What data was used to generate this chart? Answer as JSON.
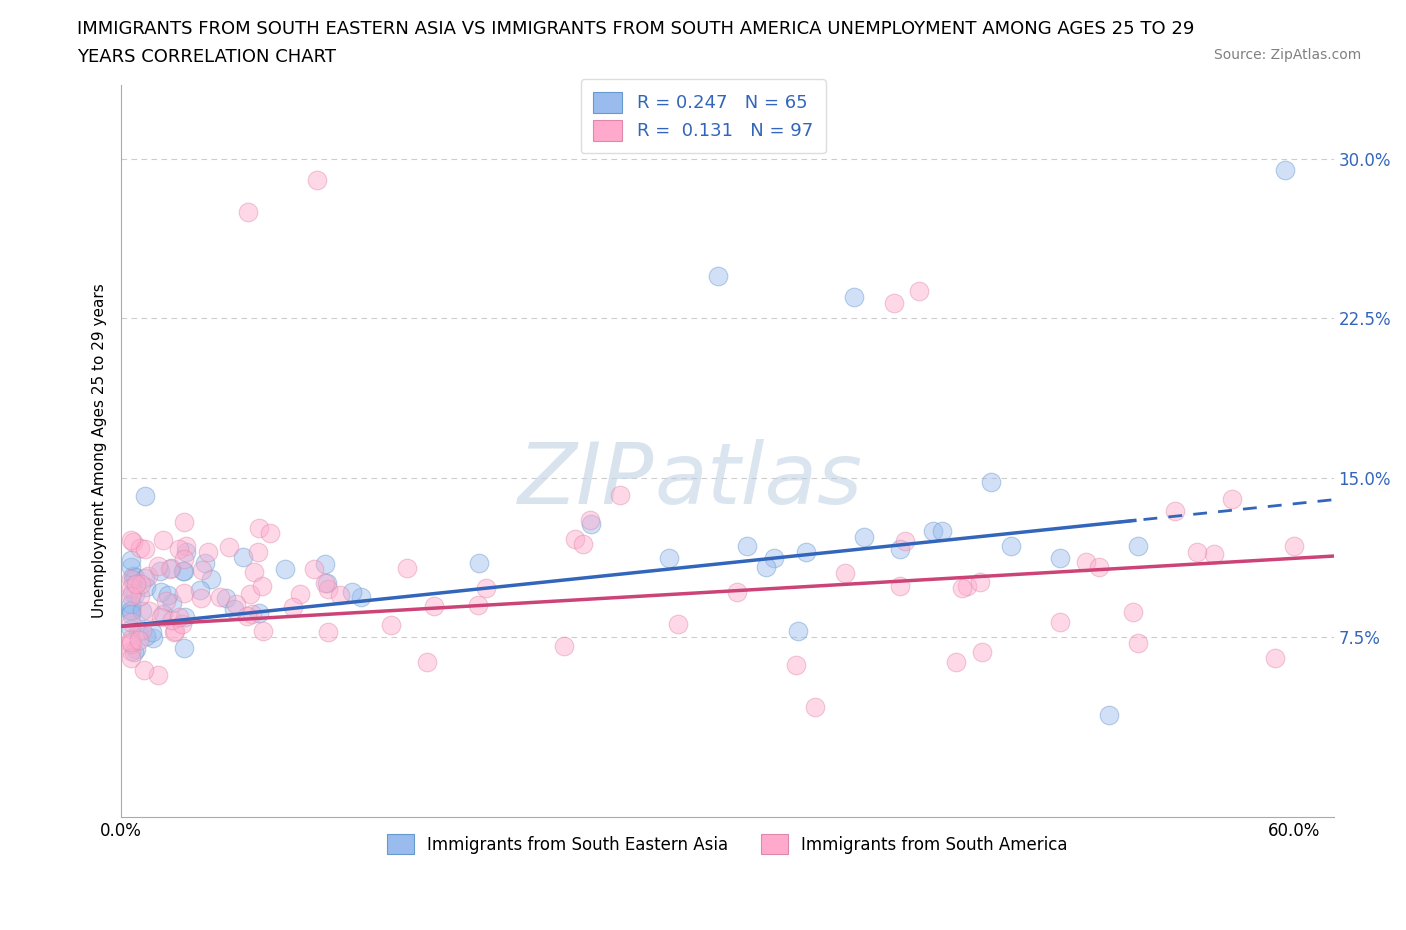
{
  "title_line1": "IMMIGRANTS FROM SOUTH EASTERN ASIA VS IMMIGRANTS FROM SOUTH AMERICA UNEMPLOYMENT AMONG AGES 25 TO 29",
  "title_line2": "YEARS CORRELATION CHART",
  "source_text": "Source: ZipAtlas.com",
  "ylabel": "Unemployment Among Ages 25 to 29 years",
  "watermark": "ZIPatlas",
  "xlim": [
    0.0,
    0.62
  ],
  "ylim": [
    -0.01,
    0.335
  ],
  "ytick_vals": [
    0.075,
    0.15,
    0.225,
    0.3
  ],
  "ytick_labels": [
    "7.5%",
    "15.0%",
    "22.5%",
    "30.0%"
  ],
  "xtick_vals": [
    0.0,
    0.6
  ],
  "xtick_labels": [
    "0.0%",
    "60.0%"
  ],
  "grid_color": "#cccccc",
  "blue_color": "#99bbee",
  "pink_color": "#ffaacc",
  "blue_line_color": "#3366bb",
  "pink_line_color": "#cc4477",
  "blue_label": "Immigrants from South Eastern Asia",
  "pink_label": "Immigrants from South America",
  "R_blue": "0.247",
  "N_blue": "65",
  "R_pink": "0.131",
  "N_pink": "97",
  "legend_text_color": "#3366bb",
  "title_fontsize": 13,
  "axis_label_fontsize": 11,
  "tick_fontsize": 12,
  "legend_fontsize": 13,
  "marker_size": 180,
  "marker_alpha": 0.45
}
